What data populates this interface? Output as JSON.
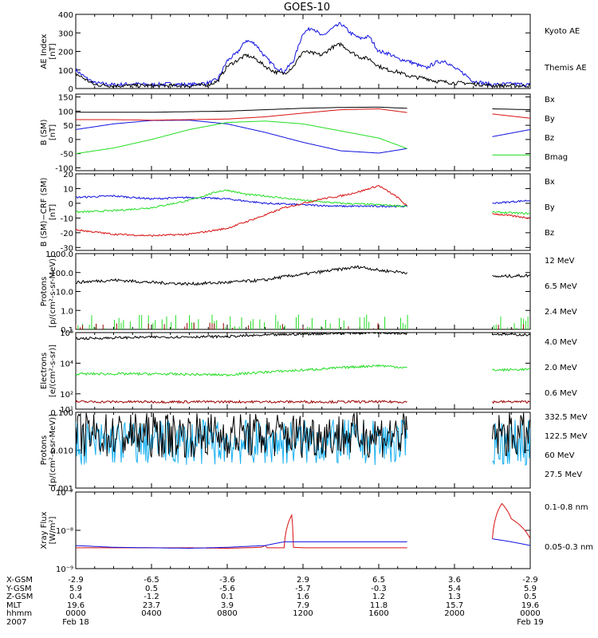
{
  "title": "GOES-10",
  "colors": {
    "blue": "#1010e0",
    "black": "#000000",
    "green": "#22dd22",
    "red": "#d81010",
    "darkred": "#9a0000",
    "yellow": "#f0e000",
    "cyan": "#18b0f0"
  },
  "chart_data": [
    {
      "type": "line",
      "id": "ae",
      "ylabel": [
        "AE Index",
        "[nT]"
      ],
      "ylim": [
        0,
        400
      ],
      "yticks": [
        0,
        100,
        200,
        300,
        400
      ],
      "xlim": [
        0,
        24
      ],
      "scale": "linear",
      "series": [
        {
          "name": "Kyoto AE",
          "color": "blue",
          "x": [
            0,
            0.5,
            1,
            2,
            3,
            4,
            5,
            6,
            7,
            7.5,
            8,
            8.5,
            9,
            9.5,
            10,
            10.5,
            11,
            11.5,
            12,
            12.5,
            13,
            13.5,
            14,
            14.5,
            15,
            15.5,
            16,
            16.5,
            17,
            17.5,
            18,
            18.5,
            19,
            19.5,
            20,
            20.5,
            21,
            22,
            23,
            24
          ],
          "y": [
            100,
            60,
            30,
            20,
            25,
            20,
            25,
            20,
            30,
            50,
            150,
            190,
            260,
            240,
            170,
            120,
            90,
            150,
            300,
            330,
            280,
            320,
            350,
            300,
            270,
            280,
            200,
            190,
            160,
            150,
            130,
            110,
            140,
            150,
            110,
            80,
            40,
            20,
            25,
            20
          ]
        },
        {
          "name": "Themis AE",
          "color": "black",
          "x": [
            0,
            0.5,
            1,
            2,
            3,
            4,
            5,
            6,
            7,
            7.5,
            8,
            8.5,
            9,
            9.5,
            10,
            10.5,
            11,
            11.5,
            12,
            12.5,
            13,
            13.5,
            14,
            14.5,
            15,
            15.5,
            16,
            16.5,
            17,
            17.5,
            18,
            18.5,
            19,
            19.5,
            20,
            20.5,
            21,
            22,
            23,
            24
          ],
          "y": [
            80,
            50,
            20,
            15,
            15,
            15,
            15,
            15,
            20,
            40,
            120,
            150,
            180,
            160,
            120,
            90,
            80,
            120,
            200,
            190,
            180,
            220,
            240,
            200,
            170,
            160,
            120,
            100,
            90,
            70,
            60,
            55,
            40,
            35,
            30,
            30,
            25,
            15,
            15,
            15
          ]
        }
      ]
    },
    {
      "type": "line",
      "id": "bsm",
      "ylabel": [
        "B (SM)",
        "[nT]"
      ],
      "ylim": [
        -110,
        160
      ],
      "yticks": [
        -100,
        -50,
        0,
        50,
        100,
        150
      ],
      "xlim": [
        0,
        24
      ],
      "scale": "linear",
      "series": [
        {
          "name": "Bx",
          "color": "blue",
          "x": [
            0,
            2,
            4,
            6,
            8,
            10,
            12,
            14,
            16,
            17.5,
            18,
            18.5,
            22,
            24
          ],
          "y": [
            35,
            55,
            67,
            68,
            55,
            25,
            -10,
            -40,
            -48,
            -32,
            -20,
            -10,
            10,
            35
          ]
        },
        {
          "name": "By",
          "color": "green",
          "x": [
            0,
            2,
            4,
            6,
            8,
            10,
            12,
            14,
            16,
            17.5,
            22,
            24
          ],
          "y": [
            -50,
            -30,
            0,
            35,
            60,
            65,
            55,
            30,
            5,
            -32,
            -55,
            -55
          ]
        },
        {
          "name": "Bz",
          "color": "red",
          "x": [
            0,
            2,
            4,
            6,
            8,
            10,
            12,
            14,
            16,
            17.5,
            22,
            24
          ],
          "y": [
            70,
            70,
            68,
            70,
            72,
            80,
            93,
            105,
            108,
            95,
            90,
            75
          ]
        },
        {
          "name": "Bmag",
          "color": "black",
          "x": [
            0,
            2,
            4,
            6,
            8,
            10,
            12,
            14,
            16,
            17.5,
            22,
            24
          ],
          "y": [
            96,
            96,
            96,
            98,
            100,
            105,
            110,
            113,
            114,
            110,
            108,
            105
          ]
        }
      ]
    },
    {
      "type": "line",
      "id": "bmod",
      "ylabel": [
        "B (SM)−CRF (SM)",
        "[nT]"
      ],
      "ylim": [
        -32,
        20
      ],
      "yticks": [
        -30,
        -20,
        -10,
        0,
        10,
        20
      ],
      "xlim": [
        0,
        24
      ],
      "scale": "linear",
      "series": [
        {
          "name": "Bx",
          "color": "blue",
          "x": [
            0,
            2,
            4,
            6,
            8,
            10,
            12,
            14,
            16,
            17.5,
            22,
            24
          ],
          "y": [
            4,
            5,
            3,
            4,
            3,
            0,
            -1,
            -2,
            -2,
            -2,
            0,
            2
          ]
        },
        {
          "name": "By",
          "color": "green",
          "x": [
            0,
            2,
            4,
            6,
            7.5,
            8,
            9,
            10,
            12,
            14,
            16,
            17.5,
            22,
            24
          ],
          "y": [
            -6,
            -5,
            -3,
            2,
            8,
            9,
            6,
            5,
            2,
            0,
            -1,
            -2,
            -6,
            -7
          ]
        },
        {
          "name": "Bz",
          "color": "red",
          "x": [
            0,
            2,
            4,
            6,
            8,
            10,
            11,
            12,
            13,
            14,
            15,
            16,
            17,
            17.5,
            22,
            24
          ],
          "y": [
            -18,
            -21,
            -22,
            -21,
            -17,
            -8,
            -3,
            0,
            3,
            5,
            8,
            12,
            4,
            -2,
            -7,
            -10
          ]
        }
      ]
    },
    {
      "type": "line",
      "id": "protons-hi",
      "ylabel": [
        "Protons",
        "[p/(cm²-s-sr-MeV)]"
      ],
      "ylim": [
        0.1,
        1000
      ],
      "yticks": [
        0.1,
        1.0,
        10.0,
        100.0,
        1000.0
      ],
      "yticklabels": [
        "0.1",
        "1.0",
        "10.0",
        "100.0",
        "1000.0"
      ],
      "xlim": [
        0,
        24
      ],
      "scale": "log",
      "series": [
        {
          "name": "12 MeV",
          "color": "darkred"
        },
        {
          "name": "6.5 MeV",
          "color": "green"
        },
        {
          "name": "2.4 MeV",
          "color": "black",
          "x": [
            0,
            2,
            4,
            6,
            8,
            10,
            12,
            13,
            14,
            15,
            16,
            17.5,
            22,
            24
          ],
          "y": [
            30,
            40,
            30,
            25,
            30,
            40,
            80,
            110,
            150,
            200,
            130,
            100,
            60,
            70
          ]
        }
      ]
    },
    {
      "type": "line",
      "id": "electrons",
      "ylabel": [
        "Electrons",
        "[e/(cm²-s-sr)]"
      ],
      "ylim": [
        10,
        1000000
      ],
      "yticks": [
        10,
        100,
        10000,
        1000000
      ],
      "yticklabels": [
        "10¹",
        "10²",
        "10⁴",
        "10⁶"
      ],
      "xlim": [
        0,
        24
      ],
      "scale": "log",
      "series": [
        {
          "name": "4.0 MeV",
          "color": "darkred",
          "x": [
            0,
            24
          ],
          "y": [
            30,
            30
          ]
        },
        {
          "name": "2.0 MeV",
          "color": "green",
          "x": [
            0,
            4,
            8,
            12,
            14,
            16,
            17.5,
            22,
            24
          ],
          "y": [
            2000,
            2000,
            1700,
            3500,
            5000,
            7000,
            5000,
            3500,
            4000
          ]
        },
        {
          "name": "0.6 MeV",
          "color": "black",
          "x": [
            0,
            4,
            8,
            12,
            14,
            16,
            17.5,
            22,
            24
          ],
          "y": [
            400000,
            500000,
            550000,
            800000,
            900000,
            1000000,
            900000,
            800000,
            700000
          ]
        }
      ]
    },
    {
      "type": "line",
      "id": "protons-lo",
      "ylabel": [
        "Protons",
        "[p/(cm²-s-sr-MeV)]"
      ],
      "ylim": [
        0.001,
        0.1
      ],
      "yticks": [
        0.001,
        0.01,
        0.1
      ],
      "yticklabels": [
        "0.001",
        "0.010",
        "0.100"
      ],
      "xlim": [
        0,
        24
      ],
      "scale": "log",
      "series": [
        {
          "name": "332.5 MeV",
          "color": "darkred"
        },
        {
          "name": "122.5 MeV",
          "color": "yellow"
        },
        {
          "name": "60 MeV",
          "color": "cyan",
          "x": [
            0,
            24
          ],
          "y": [
            0.016,
            0.016
          ]
        },
        {
          "name": "27.5 MeV",
          "color": "black",
          "x": [
            0,
            24
          ],
          "y": [
            0.025,
            0.025
          ]
        }
      ]
    },
    {
      "type": "line",
      "id": "xray",
      "ylabel": [
        "Xray Flux",
        "[W/m²]"
      ],
      "ylim": [
        1e-09,
        1e-07
      ],
      "yticks": [
        1e-09,
        1e-08,
        1e-07
      ],
      "yticklabels": [
        "10⁻⁹",
        "10⁻⁸",
        "10⁻⁷"
      ],
      "xlim": [
        0,
        24
      ],
      "scale": "log",
      "series": [
        {
          "name": "0.1–0.8 nm",
          "color": "red",
          "x": [
            0,
            6,
            8,
            9,
            9.8,
            10,
            10.1,
            11,
            11.4,
            11.5,
            12,
            14,
            16,
            17.5,
            22,
            22.5,
            23,
            24
          ],
          "y": [
            3.5e-09,
            3.5e-09,
            3.4e-09,
            3.5e-09,
            3.6e-09,
            4e-09,
            3.5e-09,
            3.5e-09,
            2.5e-08,
            3.6e-09,
            3.5e-09,
            3.5e-09,
            3.5e-09,
            3.5e-09,
            6e-09,
            5e-08,
            2e-08,
            6e-09
          ]
        },
        {
          "name": "0.05–0.3 nm",
          "color": "blue",
          "x": [
            0,
            2,
            4,
            6,
            8,
            10,
            11,
            12,
            14,
            16,
            17.5,
            22,
            24
          ],
          "y": [
            4e-09,
            3.6e-09,
            3.5e-09,
            3.4e-09,
            3.6e-09,
            4e-09,
            5e-09,
            5e-09,
            5e-09,
            5e-09,
            5e-09,
            6e-09,
            4e-09
          ]
        }
      ]
    }
  ],
  "legends": [
    [
      {
        "text": "Kyoto AE",
        "color": "blue"
      },
      {
        "text": "Themis AE",
        "color": "black"
      }
    ],
    [
      {
        "text": "Bx",
        "color": "blue"
      },
      {
        "text": "By",
        "color": "green"
      },
      {
        "text": "Bz",
        "color": "red"
      },
      {
        "text": "Bmag",
        "color": "black"
      }
    ],
    [
      {
        "text": "Bx",
        "color": "blue"
      },
      {
        "text": "By",
        "color": "green"
      },
      {
        "text": "Bz",
        "color": "red"
      }
    ],
    [
      {
        "text": "12 MeV",
        "color": "darkred"
      },
      {
        "text": "6.5 MeV",
        "color": "green"
      },
      {
        "text": "2.4 MeV",
        "color": "black"
      }
    ],
    [
      {
        "text": "4.0 MeV",
        "color": "darkred"
      },
      {
        "text": "2.0 MeV",
        "color": "green"
      },
      {
        "text": "0.6 MeV",
        "color": "black"
      }
    ],
    [
      {
        "text": "332.5 MeV",
        "color": "darkred"
      },
      {
        "text": "122.5 MeV",
        "color": "yellow"
      },
      {
        "text": "60 MeV",
        "color": "cyan"
      },
      {
        "text": "27.5 MeV",
        "color": "black"
      }
    ],
    [
      {
        "text": "0.1-0.8 nm",
        "color": "red"
      },
      {
        "text": "0.05-0.3 nm",
        "color": "blue"
      }
    ]
  ],
  "ephemeris": {
    "row_labels": [
      "X-GSM",
      "Y-GSM",
      "Z-GSM",
      "MLT",
      "hhmm",
      "2007"
    ],
    "columns": [
      [
        "-2.9",
        "5.9",
        "0.4",
        "19.6",
        "0000",
        "Feb 18"
      ],
      [
        "-6.5",
        "0.5",
        "-1.2",
        "23.7",
        "0400",
        ""
      ],
      [
        "-3.6",
        "-5.6",
        "0.1",
        "3.9",
        "0800",
        ""
      ],
      [
        "2.9",
        "-5.7",
        "1.6",
        "7.9",
        "1200",
        ""
      ],
      [
        "6.5",
        "-0.3",
        "1.2",
        "11.8",
        "1600",
        ""
      ],
      [
        "3.6",
        "5.4",
        "1.3",
        "15.7",
        "2000",
        ""
      ],
      [
        "-2.9",
        "5.9",
        "0.5",
        "19.6",
        "0000",
        "Feb 19"
      ]
    ]
  }
}
